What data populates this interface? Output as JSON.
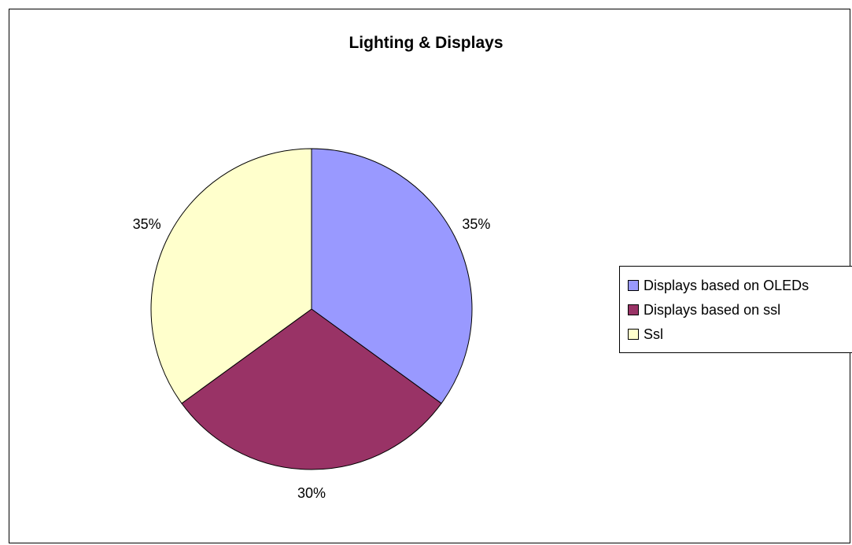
{
  "chart_data": {
    "type": "pie",
    "title": "Lighting & Displays",
    "categories": [
      "Displays based on OLEDs",
      "Displays based on ssl",
      "Ssl"
    ],
    "values": [
      35,
      30,
      35
    ],
    "labels": [
      "35%",
      "30%",
      "35%"
    ],
    "colors": [
      "#9999FF",
      "#993366",
      "#FFFFCC"
    ],
    "legend_position": "right",
    "border_color": "#000000"
  }
}
